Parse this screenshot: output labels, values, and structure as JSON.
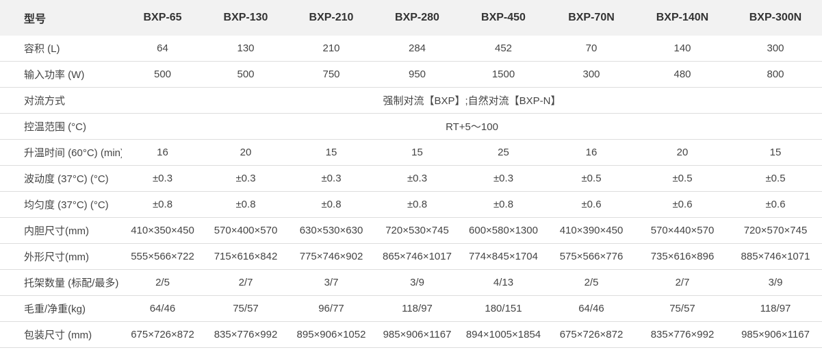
{
  "table": {
    "header": {
      "title": "型号",
      "models": [
        "BXP-65",
        "BXP-130",
        "BXP-210",
        "BXP-280",
        "BXP-450",
        "BXP-70N",
        "BXP-140N",
        "BXP-300N"
      ]
    },
    "rows": [
      {
        "label": "容积 (L)",
        "values": [
          "64",
          "130",
          "210",
          "284",
          "452",
          "70",
          "140",
          "300"
        ]
      },
      {
        "label": "输入功率 (W)",
        "values": [
          "500",
          "500",
          "750",
          "950",
          "1500",
          "300",
          "480",
          "800"
        ]
      },
      {
        "label": "对流方式",
        "value": "强制对流【BXP】;自然对流【BXP-N】"
      },
      {
        "label": "控温范围 (°C)",
        "value": "RT+5～100"
      },
      {
        "label": "升温时间 (60°C) (min)",
        "values": [
          "16",
          "20",
          "15",
          "15",
          "25",
          "16",
          "20",
          "15"
        ]
      },
      {
        "label": "波动度 (37°C) (°C)",
        "values": [
          "±0.3",
          "±0.3",
          "±0.3",
          "±0.3",
          "±0.3",
          "±0.5",
          "±0.5",
          "±0.5"
        ]
      },
      {
        "label": "均匀度 (37°C) (°C)",
        "values": [
          "±0.8",
          "±0.8",
          "±0.8",
          "±0.8",
          "±0.8",
          "±0.6",
          "±0.6",
          "±0.6"
        ]
      },
      {
        "label": "内胆尺寸(mm)",
        "values": [
          "410×350×450",
          "570×400×570",
          "630×530×630",
          "720×530×745",
          "600×580×1300",
          "410×390×450",
          "570×440×570",
          "720×570×745"
        ]
      },
      {
        "label": "外形尺寸(mm)",
        "values": [
          "555×566×722",
          "715×616×842",
          "775×746×902",
          "865×746×1017",
          "774×845×1704",
          "575×566×776",
          "735×616×896",
          "885×746×1071"
        ]
      },
      {
        "label": "托架数量 (标配/最多)",
        "values": [
          "2/5",
          "2/7",
          "3/7",
          "3/9",
          "4/13",
          "2/5",
          "2/7",
          "3/9"
        ]
      },
      {
        "label": "毛重/净重(kg)",
        "values": [
          "64/46",
          "75/57",
          "96/77",
          "118/97",
          "180/151",
          "64/46",
          "75/57",
          "118/97"
        ]
      },
      {
        "label": "包装尺寸 (mm)",
        "values": [
          "675×726×872",
          "835×776×992",
          "895×906×1052",
          "985×906×1167",
          "894×1005×1854",
          "675×726×872",
          "835×776×992",
          "985×906×1167"
        ]
      }
    ]
  }
}
